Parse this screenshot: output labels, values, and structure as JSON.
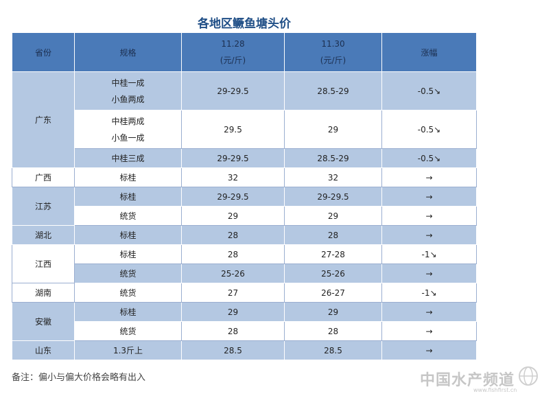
{
  "title": "各地区鳜鱼塘头价",
  "header": {
    "province": "省份",
    "spec": "规格",
    "date1": "11.28",
    "date2": "11.30",
    "unit": "(元/斤)",
    "change": "涨幅"
  },
  "rows": [
    {
      "spec1": "中桂一成",
      "spec2": "小鱼两成",
      "p1": "29-29.5",
      "p2": "28.5-29",
      "chg": "-0.5",
      "arrow": "↘"
    },
    {
      "spec1": "中桂两成",
      "spec2": "小鱼一成",
      "p1": "29.5",
      "p2": "29",
      "chg": "-0.5",
      "arrow": "↘"
    },
    {
      "spec1": "中桂三成",
      "p1": "29-29.5",
      "p2": "28.5-29",
      "chg": "-0.5",
      "arrow": "↘"
    },
    {
      "spec1": "标桂",
      "p1": "32",
      "p2": "32",
      "chg": "",
      "arrow": "→"
    },
    {
      "spec1": "标桂",
      "p1": "29-29.5",
      "p2": "29-29.5",
      "chg": "",
      "arrow": "→"
    },
    {
      "spec1": "统货",
      "p1": "29",
      "p2": "29",
      "chg": "",
      "arrow": "→"
    },
    {
      "spec1": "标桂",
      "p1": "28",
      "p2": "28",
      "chg": "",
      "arrow": "→"
    },
    {
      "spec1": "标桂",
      "p1": "28",
      "p2": "27-28",
      "chg": "-1",
      "arrow": "↘"
    },
    {
      "spec1": "统货",
      "p1": "25-26",
      "p2": "25-26",
      "chg": "",
      "arrow": "→"
    },
    {
      "spec1": "统货",
      "p1": "27",
      "p2": "26-27",
      "chg": "-1",
      "arrow": "↘"
    },
    {
      "spec1": "标桂",
      "p1": "29",
      "p2": "29",
      "chg": "",
      "arrow": "→"
    },
    {
      "spec1": "统货",
      "p1": "28",
      "p2": "28",
      "chg": "",
      "arrow": "→"
    },
    {
      "spec1": "1.3斤上",
      "p1": "28.5",
      "p2": "28.5",
      "chg": "",
      "arrow": "→"
    }
  ],
  "provinces": [
    "广东",
    "广西",
    "江苏",
    "湖北",
    "江西",
    "湖南",
    "安徽",
    "山东"
  ],
  "footnote": "备注：偏小与偏大价格会略有出入",
  "watermark": {
    "text": "中国水产频道",
    "sub": "www.fishfirst.cn"
  }
}
